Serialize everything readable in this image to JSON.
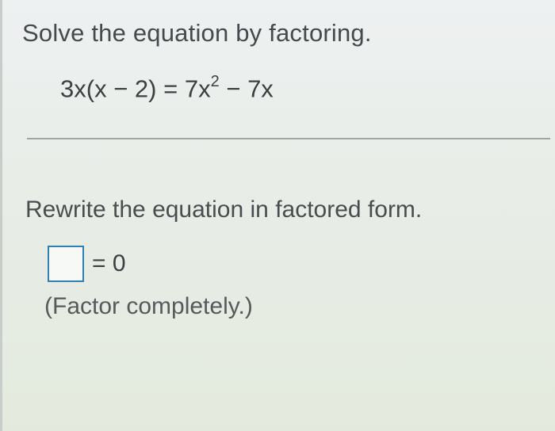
{
  "instruction": "Solve the equation by factoring.",
  "equation": {
    "lhs_1": "3x(x",
    "minus1": " − ",
    "lhs_2": "2)",
    "equals": " = ",
    "rhs_1": "7x",
    "exp": "2",
    "minus2": " − ",
    "rhs_2": "7x"
  },
  "subinstruction": "Rewrite the equation in factored form.",
  "answer": {
    "value": "",
    "placeholder": "",
    "rhs": "= 0"
  },
  "hint": "(Factor completely.)",
  "colors": {
    "text": "#3a3f43",
    "input_border": "#2e7fb4",
    "divider": "#9da6a3",
    "bg_top": "#eef1f1",
    "bg_bottom": "#e3eadd"
  }
}
